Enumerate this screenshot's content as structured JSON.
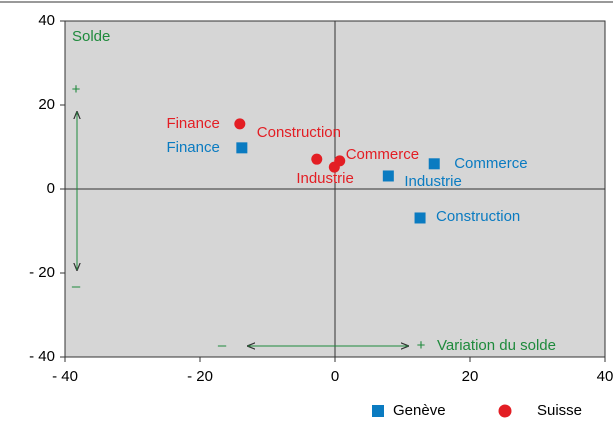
{
  "chart_data": {
    "type": "scatter",
    "series": [
      {
        "name": "Suisse",
        "color": "#e31e24",
        "marker": "circle",
        "labels": [
          "Finance",
          "Construction",
          "Commerce",
          "Industrie"
        ],
        "x": [
          -14.1,
          -2.7,
          0.7,
          -0.1
        ],
        "y": [
          15.5,
          7.1,
          6.7,
          5.2
        ]
      },
      {
        "name": "Genève",
        "color": "#0a7bc1",
        "marker": "square",
        "labels": [
          "Finance",
          "Commerce",
          "Industrie",
          "Construction"
        ],
        "x": [
          -13.8,
          14.7,
          7.9,
          12.6
        ],
        "y": [
          9.8,
          6.0,
          3.1,
          -6.9
        ]
      }
    ],
    "xlim": [
      -40,
      40
    ],
    "xticks": [
      {
        "value": -40,
        "label": "- 40"
      },
      {
        "value": -20,
        "label": "- 20"
      },
      0,
      20,
      40
    ],
    "ylim": [
      -40,
      40
    ],
    "yticks": [
      40,
      20,
      0,
      {
        "value": -20,
        "label": "- 20"
      },
      {
        "value": -40,
        "label": "- 40"
      }
    ],
    "annotations": [
      "Solde",
      "+",
      "–",
      "–",
      "+",
      "Variation du solde"
    ],
    "annotation_color": "#1e8a3c",
    "legend_order": [
      1,
      0
    ]
  }
}
